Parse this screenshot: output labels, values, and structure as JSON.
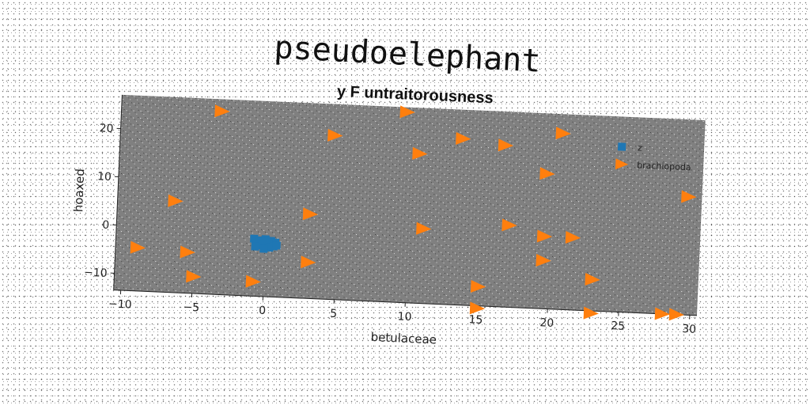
{
  "chart_data": {
    "type": "scatter",
    "title": "pseudoelephant",
    "subtitle": "y F untraitorousness",
    "xlabel": "betulaceae",
    "ylabel": "hoaxed",
    "xlim": [
      -10.5,
      30.5
    ],
    "ylim": [
      -13.5,
      27
    ],
    "xticks": [
      -10,
      -5,
      0,
      5,
      10,
      15,
      20,
      25,
      30
    ],
    "yticks": [
      -10,
      0,
      10,
      20
    ],
    "grid": false,
    "legend_position": "top-right",
    "background": "#808080",
    "series": [
      {
        "name": "z",
        "marker": "square",
        "color": "#1f77b4",
        "points": [
          [
            -0.8,
            -1.6
          ],
          [
            -0.4,
            -1.9
          ],
          [
            0.0,
            -1.6
          ],
          [
            0.4,
            -1.9
          ],
          [
            0.7,
            -2.2
          ],
          [
            -0.6,
            -2.6
          ],
          [
            -0.2,
            -2.9
          ],
          [
            0.2,
            -2.6
          ],
          [
            0.6,
            -3.0
          ],
          [
            -0.3,
            -2.2
          ],
          [
            0.1,
            -2.1
          ],
          [
            -0.7,
            -3.2
          ],
          [
            0.3,
            -3.3
          ],
          [
            0.8,
            -2.8
          ],
          [
            -0.1,
            -3.6
          ]
        ]
      },
      {
        "name": "brachiopoda",
        "marker": "triangle-right",
        "color": "#ff7f0e",
        "points": [
          [
            -3.5,
            24.5
          ],
          [
            9.5,
            26.0
          ],
          [
            4.5,
            20.5
          ],
          [
            13.5,
            21.0
          ],
          [
            16.5,
            20.0
          ],
          [
            20.5,
            23.0
          ],
          [
            10.5,
            17.5
          ],
          [
            19.5,
            14.5
          ],
          [
            29.5,
            11.0
          ],
          [
            -6.5,
            5.5
          ],
          [
            3.0,
            4.0
          ],
          [
            11.0,
            2.0
          ],
          [
            17.0,
            3.5
          ],
          [
            19.5,
            1.5
          ],
          [
            21.5,
            1.5
          ],
          [
            -9.0,
            -4.5
          ],
          [
            -5.5,
            -5.0
          ],
          [
            3.0,
            -6.0
          ],
          [
            19.5,
            -3.5
          ],
          [
            23.0,
            -7.0
          ],
          [
            -5.0,
            -10.0
          ],
          [
            -0.8,
            -10.5
          ],
          [
            15.0,
            -9.5
          ],
          [
            15.0,
            -14.0
          ],
          [
            23.0,
            -14.0
          ],
          [
            28.0,
            -13.5
          ],
          [
            29.0,
            -13.5
          ]
        ]
      }
    ]
  }
}
